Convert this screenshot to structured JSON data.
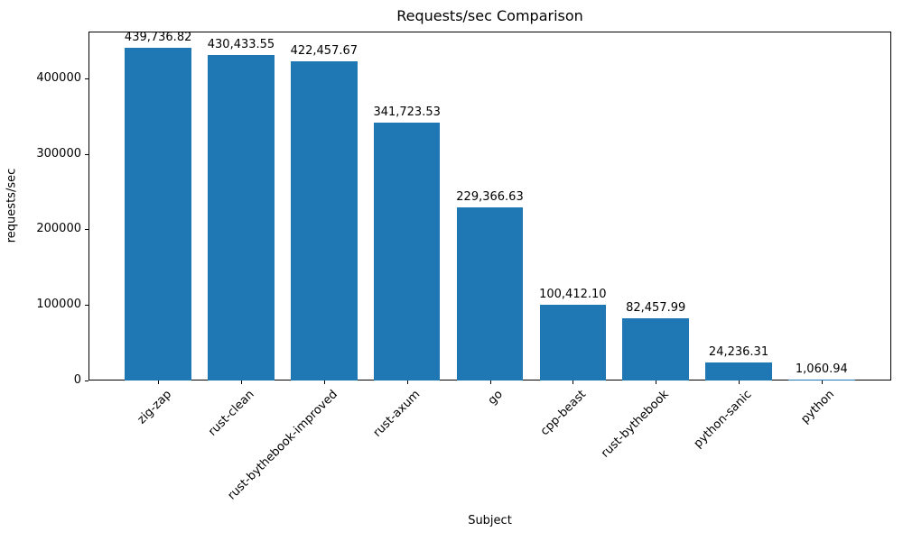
{
  "chart_data": {
    "type": "bar",
    "title": "Requests/sec Comparison",
    "xlabel": "Subject",
    "ylabel": "requests/sec",
    "categories": [
      "zig-zap",
      "rust-clean",
      "rust-bythebook-improved",
      "rust-axum",
      "go",
      "cpp-beast",
      "rust-bythebook",
      "python-sanic",
      "python"
    ],
    "values": [
      439736.82,
      430433.55,
      422457.67,
      341723.53,
      229366.63,
      100412.1,
      82457.99,
      24236.31,
      1060.94
    ],
    "value_labels": [
      "439,736.82",
      "430,433.55",
      "422,457.67",
      "341,723.53",
      "229,366.63",
      "100,412.10",
      "82,457.99",
      "24,236.31",
      "1,060.94"
    ],
    "yticks": [
      0,
      100000,
      200000,
      300000,
      400000
    ],
    "ytick_labels": [
      "0",
      "100000",
      "200000",
      "300000",
      "400000"
    ],
    "ylim": [
      0,
      461724
    ],
    "xlim": [
      -0.84,
      8.84
    ],
    "bar_width_fraction": 0.8,
    "bar_color": "#1f77b4",
    "grid": false,
    "legend": "none"
  }
}
